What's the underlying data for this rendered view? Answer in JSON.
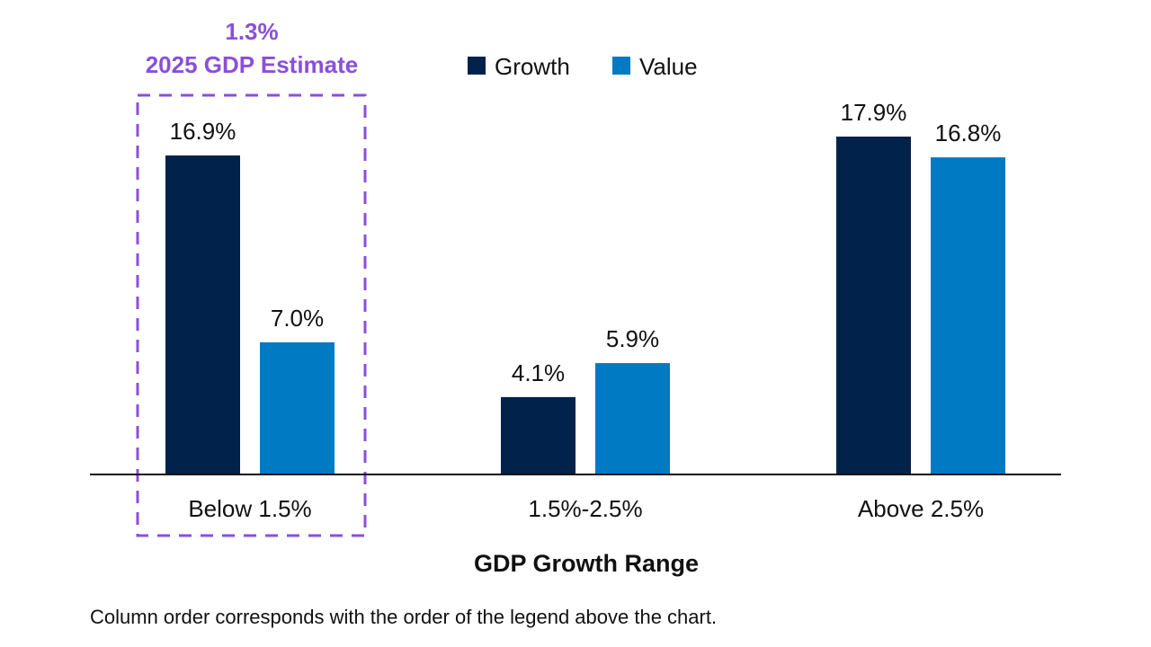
{
  "chart_data": {
    "type": "bar",
    "categories": [
      "Below 1.5%",
      "1.5%-2.5%",
      "Above 2.5%"
    ],
    "series": [
      {
        "name": "Growth",
        "values": [
          16.9,
          4.1,
          17.9
        ],
        "labels": [
          "16.9%",
          "4.1%",
          "17.9%"
        ],
        "color": "#00224B"
      },
      {
        "name": "Value",
        "values": [
          7.0,
          5.9,
          16.8
        ],
        "labels": [
          "7.0%",
          "5.9%",
          "16.8%"
        ],
        "color": "#007AC3"
      }
    ],
    "xlabel": "GDP Growth Range",
    "ylabel": "",
    "ylim": [
      0,
      20
    ],
    "grid": false,
    "legend_position": "top-center",
    "highlight": {
      "category": "Below 1.5%",
      "line1": "1.3%",
      "line2": "2025 GDP Estimate",
      "color": "#8A4FDB"
    }
  },
  "footnote": "Column order corresponds with the order of the legend above the chart."
}
